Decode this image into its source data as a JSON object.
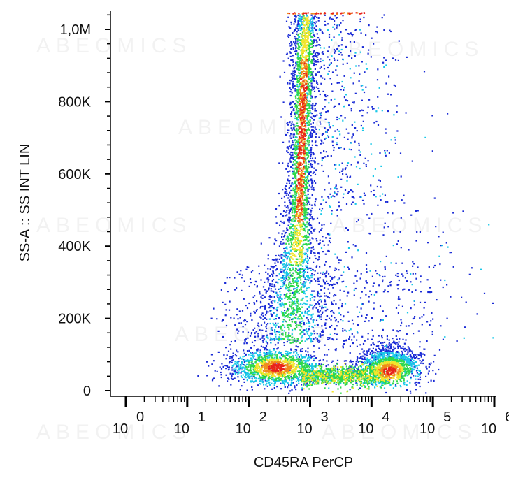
{
  "chart_data": {
    "type": "scatter",
    "subtype": "flow-cytometry density dot plot",
    "xlabel": "CD45RA PerCP",
    "ylabel": "SS-A :: SS INT LIN",
    "x_scale": "log",
    "x_range": [
      1,
      1000000
    ],
    "y_scale": "linear",
    "y_range": [
      0,
      1050000
    ],
    "y_ticks": [
      {
        "value": 0,
        "label": "0"
      },
      {
        "value": 200000,
        "label": "200K"
      },
      {
        "value": 400000,
        "label": "400K"
      },
      {
        "value": 600000,
        "label": "600K"
      },
      {
        "value": 800000,
        "label": "800K"
      },
      {
        "value": 1000000,
        "label": "1,0M"
      }
    ],
    "x_ticks": [
      {
        "value": 1,
        "base": "10",
        "exponent": "0"
      },
      {
        "value": 10,
        "base": "10",
        "exponent": "1"
      },
      {
        "value": 100,
        "base": "10",
        "exponent": "2"
      },
      {
        "value": 1000,
        "base": "10",
        "exponent": "3"
      },
      {
        "value": 10000,
        "base": "10",
        "exponent": "4"
      },
      {
        "value": 100000,
        "base": "10",
        "exponent": "5"
      },
      {
        "value": 1000000,
        "base": "10",
        "exponent": "6"
      }
    ],
    "color_scale": [
      "#1a2bd6",
      "#18c8e8",
      "#2ed84a",
      "#f3e52c",
      "#f08a1c",
      "#e8221c"
    ],
    "populations": [
      {
        "x": 250,
        "y": 72000
      },
      {
        "x": 750,
        "y": 700000
      },
      {
        "x": 10000,
        "y": 55000
      }
    ],
    "grid": false
  },
  "watermark": "ABEOMICS"
}
